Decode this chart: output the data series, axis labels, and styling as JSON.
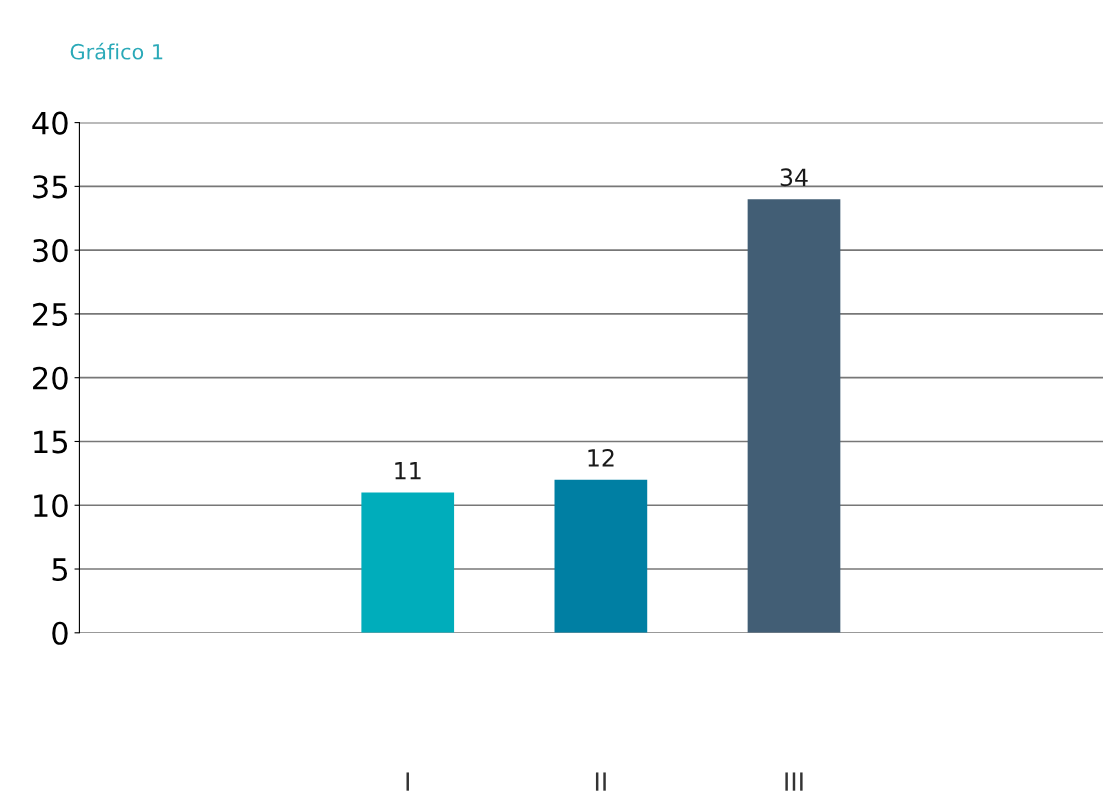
{
  "chart_data": {
    "type": "bar",
    "title": "Gráfico 1",
    "categories": [
      "I",
      "II",
      "III"
    ],
    "values": [
      11,
      12,
      34
    ],
    "colors": [
      "#00adbb",
      "#007fa3",
      "#425e75"
    ],
    "ylim": [
      0,
      40
    ],
    "yticks": [
      0,
      5,
      10,
      15,
      20,
      25,
      30,
      35,
      40
    ],
    "grid": "y",
    "data_labels": true
  }
}
